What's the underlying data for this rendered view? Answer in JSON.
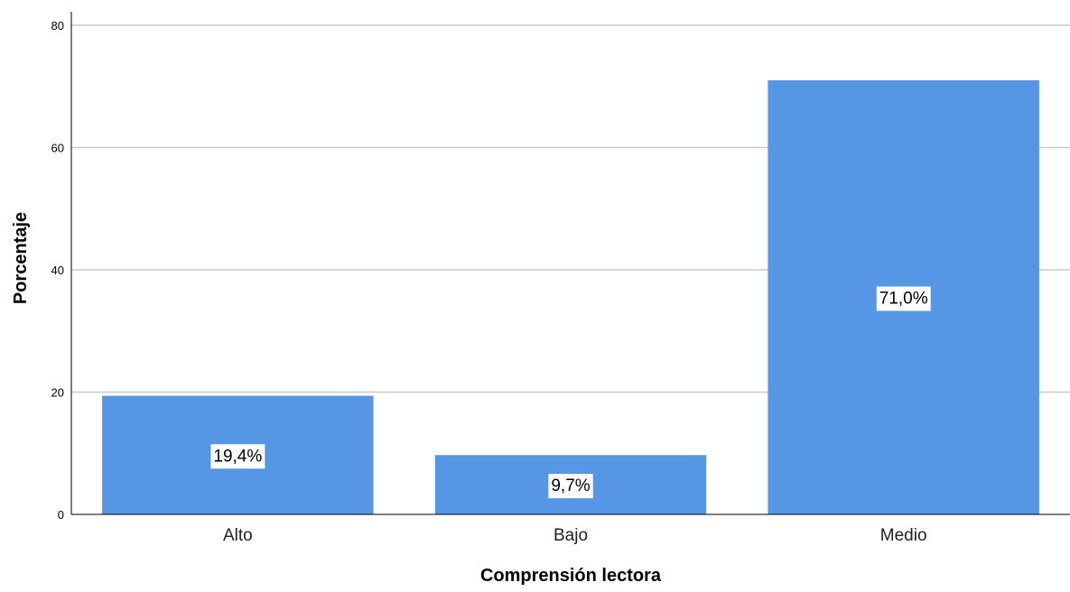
{
  "chart_data": {
    "type": "bar",
    "categories": [
      "Alto",
      "Bajo",
      "Medio"
    ],
    "values": [
      19.4,
      9.7,
      71.0
    ],
    "data_labels": [
      "19,4%",
      "9,7%",
      "71,0%"
    ],
    "xlabel": "Comprensión lectora",
    "ylabel": "Porcentaje",
    "ylim": [
      0,
      80
    ],
    "yticks": [
      0,
      20,
      40,
      60,
      80
    ],
    "grid": true,
    "bar_color": "#5597e4",
    "grid_color": "#c8c8c8",
    "axis_color": "#000000"
  }
}
